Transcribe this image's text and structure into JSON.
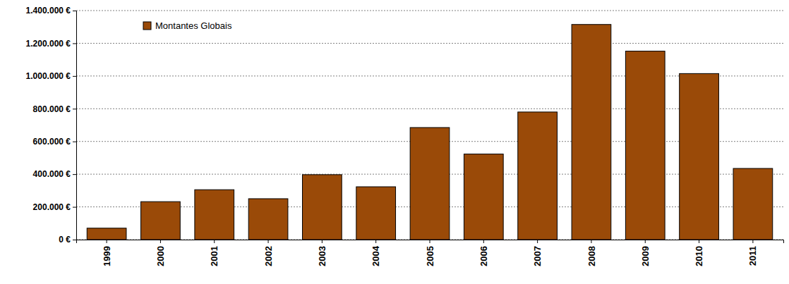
{
  "chart_data": {
    "type": "bar",
    "categories": [
      "1999",
      "2000",
      "2001",
      "2002",
      "2003",
      "2004",
      "2005",
      "2006",
      "2007",
      "2008",
      "2009",
      "2010",
      "2011"
    ],
    "series": [
      {
        "name": "Montantes Globais",
        "color": "#9a4a08",
        "values": [
          70000,
          232000,
          305000,
          250000,
          397000,
          323000,
          685000,
          523000,
          780000,
          1315000,
          1152000,
          1015000,
          435000
        ]
      }
    ],
    "ylim": [
      0,
      1400000
    ],
    "yticks": [
      {
        "value": 0,
        "label": "0 €"
      },
      {
        "value": 200000,
        "label": "200.000 €"
      },
      {
        "value": 400000,
        "label": "400.000 €"
      },
      {
        "value": 600000,
        "label": "600.000 €"
      },
      {
        "value": 800000,
        "label": "800.000 €"
      },
      {
        "value": 1000000,
        "label": "1.000.000 €"
      },
      {
        "value": 1200000,
        "label": "1.200.000 €"
      },
      {
        "value": 1400000,
        "label": "1.400.000 €"
      }
    ],
    "grid": true,
    "legend": "upper left"
  }
}
